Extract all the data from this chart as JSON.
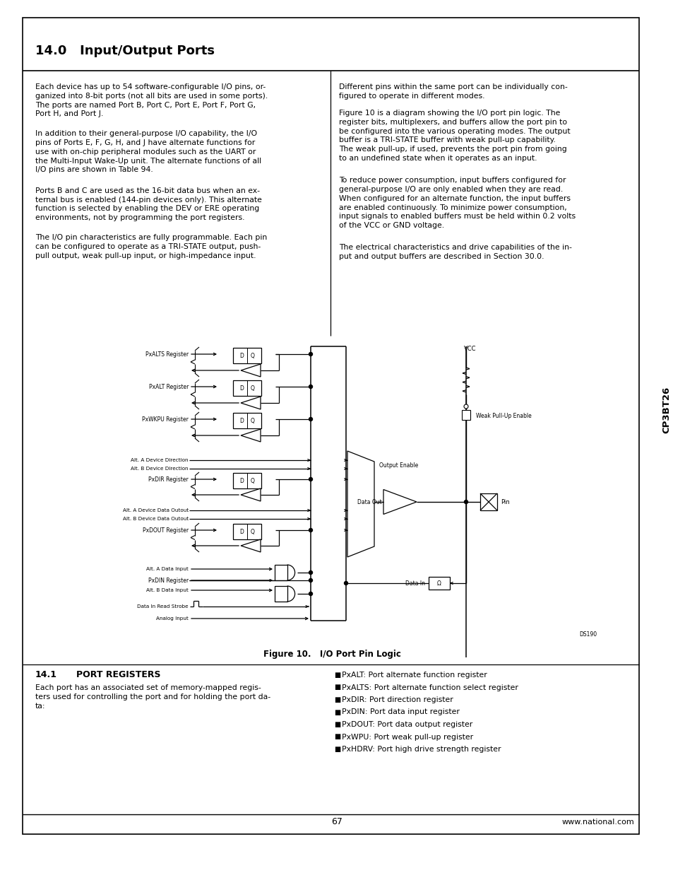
{
  "page_number": "67",
  "website": "www.national.com",
  "chip_name": "CP3BT26",
  "section_title": "14.0   Input/Output Ports",
  "left_col_paragraphs": [
    "Each device has up to 54 software-configurable I/O pins, or-\nganized into 8-bit ports (not all bits are used in some ports).\nThe ports are named Port B, Port C, Port E, Port F, Port G,\nPort H, and Port J.",
    "In addition to their general-purpose I/O capability, the I/O\npins of Ports E, F, G, H, and J have alternate functions for\nuse with on-chip peripheral modules such as the UART or\nthe Multi-Input Wake-Up unit. The alternate functions of all\nI/O pins are shown in Table 94.",
    "Ports B and C are used as the 16-bit data bus when an ex-\nternal bus is enabled (144-pin devices only). This alternate\nfunction is selected by enabling the DEV or ERE operating\nenvironments, not by programming the port registers.",
    "The I/O pin characteristics are fully programmable. Each pin\ncan be configured to operate as a TRI-STATE output, push-\npull output, weak pull-up input, or high-impedance input."
  ],
  "right_col_paragraphs": [
    "Different pins within the same port can be individually con-\nfigured to operate in different modes.",
    "Figure 10 is a diagram showing the I/O port pin logic. The\nregister bits, multiplexers, and buffers allow the port pin to\nbe configured into the various operating modes. The output\nbuffer is a TRI-STATE buffer with weak pull-up capability.\nThe weak pull-up, if used, prevents the port pin from going\nto an undefined state when it operates as an input.",
    "To reduce power consumption, input buffers configured for\ngeneral-purpose I/O are only enabled when they are read.\nWhen configured for an alternate function, the input buffers\nare enabled continuously. To minimize power consumption,\ninput signals to enabled buffers must be held within 0.2 volts\nof the VCC or GND voltage.",
    "The electrical characteristics and drive capabilities of the in-\nput and output buffers are described in Section 30.0."
  ],
  "figure_caption": "Figure 10.   I/O Port Pin Logic",
  "section_14_1_title": "14.1   PORT REGISTERS",
  "section_14_1_body": "Each port has an associated set of memory-mapped regis-\nters used for controlling the port and for holding the port da-\nta:",
  "bullet_items": [
    "PxALT: Port alternate function register",
    "PxALTS: Port alternate function select register",
    "PxDIR: Port direction register",
    "PxDIN: Port data input register",
    "PxDOUT: Port data output register",
    "PxWPU: Port weak pull-up register",
    "PxHDRV: Port high drive strength register"
  ],
  "bg_color": "#ffffff",
  "text_color": "#000000"
}
